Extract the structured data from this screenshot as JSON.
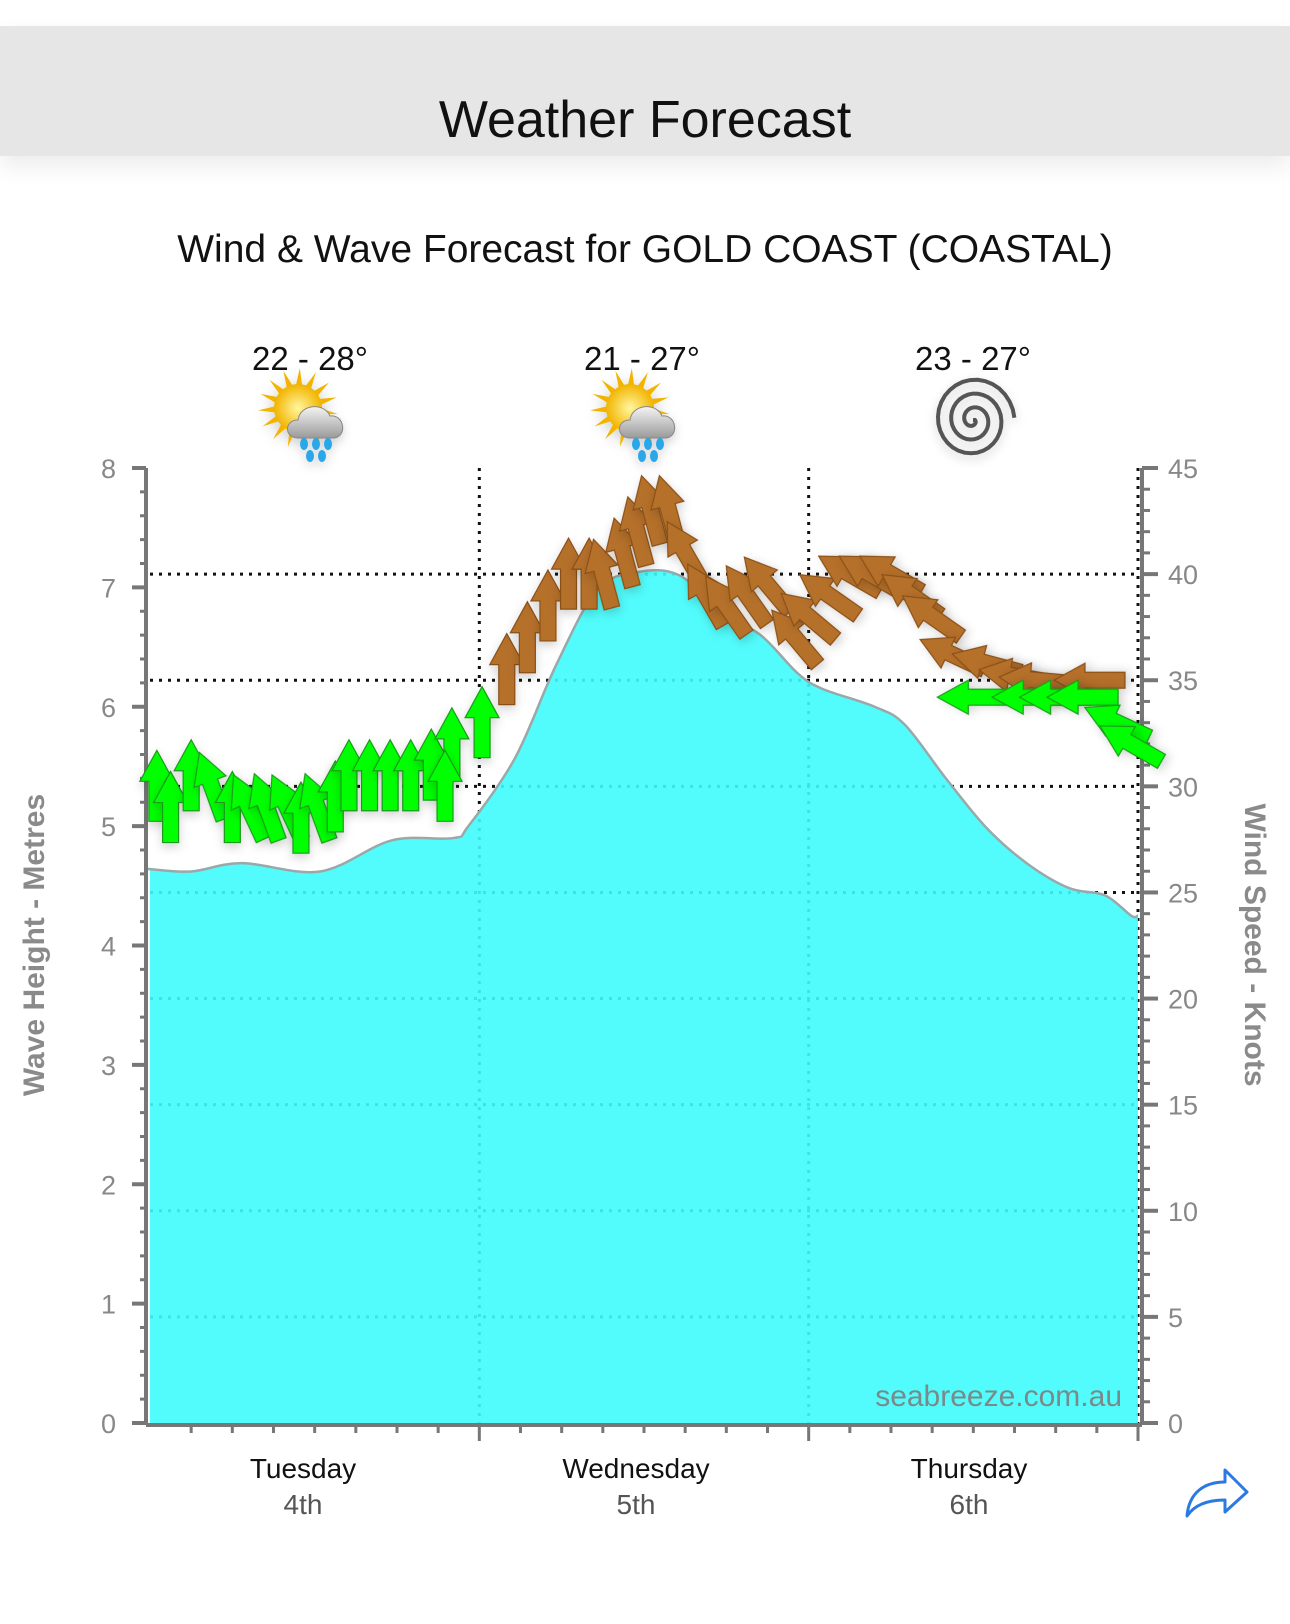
{
  "header": {
    "title": "Weather Forecast"
  },
  "chart_data": {
    "type": "area",
    "title": "Wind & Wave Forecast for GOLD COAST (COASTAL)",
    "watermark": "seabreeze.com.au",
    "x_range_hours": [
      0,
      72
    ],
    "days": [
      {
        "name": "Tuesday",
        "date": "4th",
        "temp": "22 - 28°",
        "icon": "sun-cloud-rain-icon"
      },
      {
        "name": "Wednesday",
        "date": "5th",
        "temp": "21 - 27°",
        "icon": "sun-cloud-rain-icon"
      },
      {
        "name": "Thursday",
        "date": "6th",
        "temp": "23 - 27°",
        "icon": "wind-spiral-icon"
      }
    ],
    "left_axis": {
      "label": "Wave Height - Metres",
      "range": [
        0,
        8
      ],
      "ticks": [
        "0",
        "1",
        "2",
        "3",
        "4",
        "5",
        "6",
        "7",
        "8"
      ]
    },
    "right_axis": {
      "label": "Wind Speed - Knots",
      "range": [
        0,
        45
      ],
      "ticks": [
        "0",
        "5",
        "10",
        "15",
        "20",
        "25",
        "30",
        "35",
        "40",
        "45"
      ]
    },
    "wave_height": {
      "unit": "m",
      "x_hours": [
        0,
        3,
        6.7,
        12.4,
        17.6,
        22.1,
        23.2,
        26.6,
        29.6,
        32.6,
        35.6,
        38.6,
        41.5,
        44.5,
        47.2,
        49,
        52.8,
        55,
        58,
        61,
        64,
        67,
        69.6,
        71.5
      ],
      "values": [
        4.64,
        4.62,
        4.69,
        4.62,
        4.88,
        4.9,
        5.0,
        5.57,
        6.35,
        6.98,
        7.13,
        7.1,
        6.8,
        6.6,
        6.28,
        6.15,
        6.0,
        5.85,
        5.4,
        4.98,
        4.68,
        4.48,
        4.42,
        4.25
      ]
    },
    "wind": {
      "unit": "knots",
      "threshold_knots": 35,
      "colors": {
        "below": "#00ff00",
        "above": "#b5702a"
      },
      "points": [
        {
          "h": 0.5,
          "kn": 30,
          "dir": 0
        },
        {
          "h": 1.5,
          "kn": 29,
          "dir": 0
        },
        {
          "h": 3,
          "kn": 30.5,
          "dir": 0
        },
        {
          "h": 4.5,
          "kn": 30,
          "dir": -20
        },
        {
          "h": 6,
          "kn": 29,
          "dir": 0
        },
        {
          "h": 7.2,
          "kn": 29,
          "dir": -25
        },
        {
          "h": 8.5,
          "kn": 29,
          "dir": -20
        },
        {
          "h": 10,
          "kn": 29,
          "dir": -25
        },
        {
          "h": 11,
          "kn": 28.5,
          "dir": 0
        },
        {
          "h": 12.2,
          "kn": 29,
          "dir": -20
        },
        {
          "h": 13.5,
          "kn": 29.5,
          "dir": 0
        },
        {
          "h": 14.5,
          "kn": 30.5,
          "dir": 0
        },
        {
          "h": 16,
          "kn": 30.5,
          "dir": 0
        },
        {
          "h": 17.5,
          "kn": 30.5,
          "dir": 0
        },
        {
          "h": 19,
          "kn": 30.5,
          "dir": 0
        },
        {
          "h": 20.5,
          "kn": 31,
          "dir": 0
        },
        {
          "h": 22,
          "kn": 32,
          "dir": 0
        },
        {
          "h": 21.5,
          "kn": 30,
          "dir": 0
        },
        {
          "h": 24.2,
          "kn": 33,
          "dir": 0
        },
        {
          "h": 26,
          "kn": 35.5,
          "dir": 0
        },
        {
          "h": 27.5,
          "kn": 37,
          "dir": 0
        },
        {
          "h": 29,
          "kn": 38.5,
          "dir": 0
        },
        {
          "h": 30.5,
          "kn": 40,
          "dir": 0
        },
        {
          "h": 32,
          "kn": 40,
          "dir": 0
        },
        {
          "h": 33,
          "kn": 40,
          "dir": -15
        },
        {
          "h": 34.5,
          "kn": 41,
          "dir": -15
        },
        {
          "h": 35.5,
          "kn": 42,
          "dir": -15
        },
        {
          "h": 36.5,
          "kn": 43,
          "dir": -15
        },
        {
          "h": 37.8,
          "kn": 43,
          "dir": -15
        },
        {
          "h": 39,
          "kn": 41,
          "dir": -30
        },
        {
          "h": 40.5,
          "kn": 39,
          "dir": -30
        },
        {
          "h": 42,
          "kn": 38.5,
          "dir": -35
        },
        {
          "h": 43.5,
          "kn": 39,
          "dir": -35
        },
        {
          "h": 45,
          "kn": 39.5,
          "dir": -40
        },
        {
          "h": 47,
          "kn": 37,
          "dir": -40
        },
        {
          "h": 48,
          "kn": 38,
          "dir": -50
        },
        {
          "h": 49.5,
          "kn": 39,
          "dir": -55
        },
        {
          "h": 51,
          "kn": 40,
          "dir": -60
        },
        {
          "h": 52.5,
          "kn": 40,
          "dir": -60
        },
        {
          "h": 54,
          "kn": 40,
          "dir": -60
        },
        {
          "h": 55.5,
          "kn": 39,
          "dir": -55
        },
        {
          "h": 57,
          "kn": 38,
          "dir": -55
        },
        {
          "h": 58.5,
          "kn": 36.2,
          "dir": -65
        },
        {
          "h": 61,
          "kn": 35.8,
          "dir": -75
        },
        {
          "h": 63,
          "kn": 35.2,
          "dir": -80
        },
        {
          "h": 64.5,
          "kn": 35,
          "dir": -85
        },
        {
          "h": 68.5,
          "kn": 35,
          "dir": -90
        },
        {
          "h": 60,
          "kn": 34.2,
          "dir": -90
        },
        {
          "h": 64,
          "kn": 34.2,
          "dir": -90
        },
        {
          "h": 66,
          "kn": 34.2,
          "dir": -90
        },
        {
          "h": 68,
          "kn": 34.2,
          "dir": -90
        },
        {
          "h": 70.5,
          "kn": 33,
          "dir": -65
        },
        {
          "h": 71.5,
          "kn": 32,
          "dir": -60
        }
      ]
    },
    "fill_color": "#3ffcfc",
    "grid": true
  }
}
